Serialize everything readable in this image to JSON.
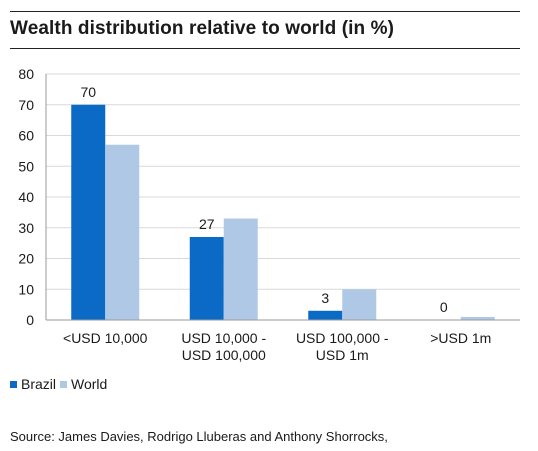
{
  "chart_data": {
    "type": "bar",
    "title": "Wealth distribution relative to world (in %)",
    "categories": [
      "<USD 10,000",
      "USD 10,000 - USD 100,000",
      "USD 100,000 - USD 1m",
      ">USD 1m"
    ],
    "category_lines": [
      [
        "<USD 10,000"
      ],
      [
        "USD 10,000 -",
        "USD 100,000"
      ],
      [
        "USD 100,000 -",
        "USD 1m"
      ],
      [
        ">USD 1m"
      ]
    ],
    "series": [
      {
        "name": "Brazil",
        "values": [
          70,
          27,
          3,
          0
        ],
        "color": "#0a6ac6",
        "labels": [
          "70",
          "27",
          "3",
          "0"
        ]
      },
      {
        "name": "World",
        "values": [
          57,
          33,
          10,
          1
        ],
        "color": "#aec8e6"
      }
    ],
    "ylim": [
      0,
      80
    ],
    "yticks": [
      "0",
      "10",
      "20",
      "30",
      "40",
      "50",
      "60",
      "70",
      "80"
    ],
    "grid": true,
    "legend": "bottom-left",
    "source": "Source: James Davies, Rodrigo Lluberas and Anthony Shorrocks,"
  }
}
